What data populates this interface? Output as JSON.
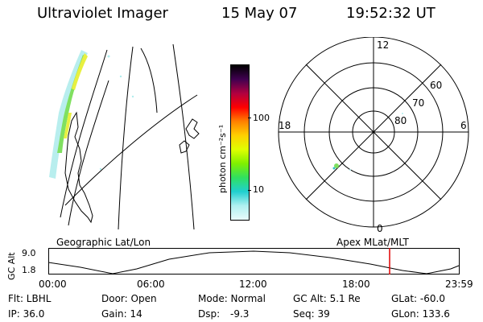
{
  "header": {
    "title": "Ultraviolet Imager",
    "date": "15 May 07",
    "time": "19:52:32 UT"
  },
  "colorbar": {
    "unit_label": "photon cm⁻²s⁻¹",
    "ticks": [
      "100",
      "10"
    ],
    "colors": [
      "#000000",
      "#400050",
      "#b00040",
      "#ff0000",
      "#ff8000",
      "#ffd000",
      "#e0ff00",
      "#80f000",
      "#30e060",
      "#20d0d0",
      "#b0f0f0",
      "#e8fafa"
    ]
  },
  "polar": {
    "mlt_labels": [
      "12",
      "18",
      "6",
      "0"
    ],
    "lat_labels": [
      "60",
      "70",
      "80"
    ]
  },
  "geo_label": "Geographic Lat/Lon",
  "apex_label": "Apex MLat/MLT",
  "gcalt_plot": {
    "axis_title": "GC Alt",
    "y_ticks": [
      "9.0",
      "1.8"
    ],
    "x_ticks": [
      "00:00",
      "06:00",
      "12:00",
      "18:00",
      "23:59"
    ],
    "marker_color": "#e00000"
  },
  "info": {
    "row1": {
      "filter": "Flt: LBHL",
      "door": "Door: Open",
      "mode": "Mode: Normal",
      "gc_alt": "GC Alt: 5.1 Re",
      "glat": "GLat: -60.0"
    },
    "row2": {
      "ip": "IP: 36.0",
      "gain": "Gain: 14",
      "dsp_label": "Dsp:",
      "dsp_value": "-9.3",
      "seq": "Seq: 39",
      "glon": "GLon: 133.6"
    }
  }
}
